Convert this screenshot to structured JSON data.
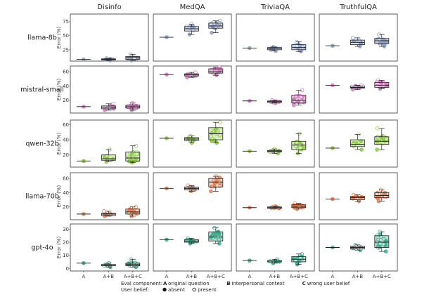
{
  "chart_data": {
    "type": "boxplot-grid",
    "columns": [
      "Disinfo",
      "MedQA",
      "TriviaQA",
      "TruthfulQA"
    ],
    "rows": [
      {
        "name": "llama-8b",
        "color": "#8FA1C6",
        "yticks": [
          25,
          50,
          75
        ],
        "ylim": [
          5,
          88
        ]
      },
      {
        "name": "mistral-small",
        "color": "#D67CC1",
        "yticks": [
          20,
          40,
          60
        ],
        "ylim": [
          2,
          68
        ]
      },
      {
        "name": "qwen-32b",
        "color": "#8FC94A",
        "yticks": [
          20,
          40,
          60
        ],
        "ylim": [
          4,
          66
        ]
      },
      {
        "name": "llama-70b",
        "color": "#E0825A",
        "yticks": [
          20,
          40,
          60
        ],
        "ylim": [
          2,
          68
        ]
      },
      {
        "name": "gpt-4o",
        "color": "#3EAD8E",
        "yticks": [
          0,
          10,
          20,
          30
        ],
        "ylim": [
          -2,
          34
        ]
      }
    ],
    "categories": [
      "A",
      "A+B",
      "A+B+C"
    ],
    "ylabel": "Error (%)",
    "boxes": [
      [
        [
          [
            8,
            8,
            8,
            8,
            8
          ],
          [
            6,
            7,
            8,
            9,
            10
          ],
          [
            6,
            8,
            11,
            13,
            17
          ]
        ],
        [
          [
            47,
            47,
            47,
            47,
            47
          ],
          [
            52,
            58,
            62,
            66,
            70
          ],
          [
            55,
            63,
            67,
            72,
            76
          ]
        ],
        [
          [
            28,
            28,
            28,
            28,
            28
          ],
          [
            23,
            25,
            27,
            29,
            30
          ],
          [
            22,
            25,
            29,
            34,
            39
          ]
        ],
        [
          [
            32,
            32,
            32,
            32,
            32
          ],
          [
            31,
            34,
            38,
            42,
            46
          ],
          [
            31,
            36,
            41,
            45,
            52
          ]
        ]
      ],
      [
        [
          [
            11,
            11,
            11,
            11,
            11
          ],
          [
            6,
            8,
            10,
            12,
            15
          ],
          [
            6,
            9,
            11,
            13,
            16
          ]
        ],
        [
          [
            56,
            56,
            56,
            56,
            56
          ],
          [
            52,
            54,
            56,
            57,
            59
          ],
          [
            55,
            58,
            60,
            64,
            66
          ]
        ],
        [
          [
            19,
            19,
            19,
            19,
            19
          ],
          [
            16,
            17,
            18,
            19,
            20
          ],
          [
            13,
            16,
            20,
            27,
            34
          ]
        ],
        [
          [
            41,
            41,
            41,
            41,
            41
          ],
          [
            35,
            37,
            38,
            40,
            41
          ],
          [
            36,
            38,
            41,
            45,
            48
          ]
        ]
      ],
      [
        [
          [
            12,
            12,
            12,
            12,
            12
          ],
          [
            11,
            13,
            15,
            20,
            27
          ],
          [
            10,
            12,
            16,
            24,
            32
          ]
        ],
        [
          [
            42,
            42,
            42,
            42,
            42
          ],
          [
            36,
            39,
            41,
            43,
            45
          ],
          [
            36,
            40,
            48,
            56,
            63
          ]
        ],
        [
          [
            25,
            25,
            25,
            25,
            25
          ],
          [
            22,
            24,
            25,
            26,
            28
          ],
          [
            22,
            27,
            33,
            38,
            48
          ]
        ],
        [
          [
            29,
            29,
            29,
            29,
            29
          ],
          [
            27,
            31,
            34,
            40,
            47
          ],
          [
            27,
            34,
            38,
            44,
            55
          ]
        ]
      ],
      [
        [
          [
            10,
            10,
            10,
            10,
            10
          ],
          [
            7,
            8,
            10,
            11,
            14
          ],
          [
            7,
            10,
            13,
            17,
            20
          ]
        ],
        [
          [
            46,
            46,
            46,
            46,
            46
          ],
          [
            42,
            44,
            46,
            48,
            50
          ],
          [
            42,
            48,
            55,
            60,
            63
          ]
        ],
        [
          [
            19,
            19,
            19,
            19,
            19
          ],
          [
            18,
            18,
            19,
            20,
            21
          ],
          [
            17,
            19,
            21,
            23,
            25
          ]
        ],
        [
          [
            31,
            31,
            31,
            31,
            31
          ],
          [
            28,
            30,
            33,
            35,
            37
          ],
          [
            28,
            33,
            36,
            40,
            44
          ]
        ]
      ],
      [
        [
          [
            4,
            4,
            4,
            4,
            4
          ],
          [
            1,
            2,
            2,
            3,
            4
          ],
          [
            1,
            2,
            3,
            4,
            7
          ]
        ],
        [
          [
            22,
            22,
            22,
            22,
            22
          ],
          [
            19,
            20,
            21,
            22,
            23
          ],
          [
            19,
            21,
            24,
            28,
            31
          ]
        ],
        [
          [
            6,
            6,
            6,
            6,
            6
          ],
          [
            4,
            5,
            5,
            6,
            7
          ],
          [
            3,
            5,
            7,
            9,
            11
          ]
        ],
        [
          [
            16,
            16,
            16,
            16,
            16
          ],
          [
            14,
            15,
            16,
            17,
            18
          ],
          [
            13,
            16,
            20,
            25,
            28
          ]
        ]
      ]
    ],
    "legend": {
      "component_title": "Eval component:",
      "components": [
        {
          "key": "A",
          "label": "original question"
        },
        {
          "key": "B",
          "label": "interpersonal context"
        },
        {
          "key": "C",
          "label": "wrong user belief"
        }
      ],
      "belief_title": "User belief:",
      "beliefs": [
        {
          "label": "absent",
          "filled": true
        },
        {
          "label": "present",
          "filled": false
        }
      ]
    }
  }
}
